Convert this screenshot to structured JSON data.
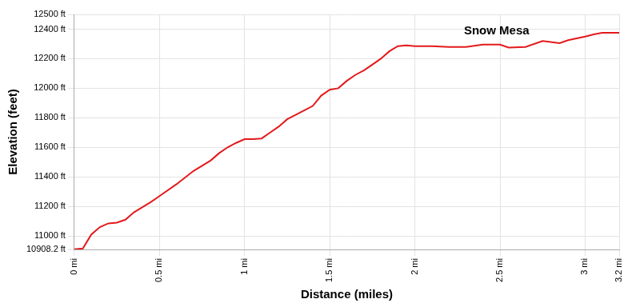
{
  "chart_data": {
    "type": "line",
    "x_label": "Distance (miles)",
    "y_label": "Elevation (feet)",
    "color": "#e31a1c",
    "grid": true,
    "x": [
      0,
      0.05,
      0.1,
      0.15,
      0.2,
      0.25,
      0.3,
      0.35,
      0.4,
      0.45,
      0.5,
      0.6,
      0.7,
      0.8,
      0.85,
      0.9,
      0.95,
      1.0,
      1.05,
      1.1,
      1.15,
      1.2,
      1.25,
      1.3,
      1.35,
      1.4,
      1.45,
      1.5,
      1.55,
      1.6,
      1.65,
      1.7,
      1.75,
      1.8,
      1.85,
      1.9,
      1.95,
      2.0,
      2.1,
      2.2,
      2.3,
      2.4,
      2.5,
      2.55,
      2.65,
      2.75,
      2.85,
      2.9,
      3.0,
      3.05,
      3.1,
      3.2
    ],
    "values": [
      10910,
      10915,
      11010,
      11060,
      11085,
      11090,
      11110,
      11160,
      11195,
      11230,
      11270,
      11350,
      11440,
      11510,
      11560,
      11600,
      11630,
      11655,
      11655,
      11660,
      11700,
      11740,
      11790,
      11820,
      11850,
      11880,
      11950,
      11990,
      12000,
      12050,
      12090,
      12120,
      12160,
      12200,
      12250,
      12285,
      12290,
      12285,
      12285,
      12280,
      12280,
      12295,
      12295,
      12275,
      12280,
      12320,
      12305,
      12325,
      12350,
      12365,
      12375,
      12375
    ],
    "xlim": [
      0,
      3.2
    ],
    "ylim": [
      10908.2,
      12500
    ],
    "xticks": [
      {
        "value": 0,
        "label": "0 mi"
      },
      {
        "value": 0.5,
        "label": "0.5 mi"
      },
      {
        "value": 1,
        "label": "1 mi"
      },
      {
        "value": 1.5,
        "label": "1.5 mi"
      },
      {
        "value": 2,
        "label": "2 mi"
      },
      {
        "value": 2.5,
        "label": "2.5 mi"
      },
      {
        "value": 3,
        "label": "3 mi"
      },
      {
        "value": 3.2,
        "label": "3.2 mi"
      }
    ],
    "yticks": [
      {
        "value": 10908.2,
        "label": "10908.2 ft"
      },
      {
        "value": 11000,
        "label": "11000 ft"
      },
      {
        "value": 11200,
        "label": "11200 ft"
      },
      {
        "value": 11400,
        "label": "11400 ft"
      },
      {
        "value": 11600,
        "label": "11600 ft"
      },
      {
        "value": 11800,
        "label": "11800 ft"
      },
      {
        "value": 12000,
        "label": "12000 ft"
      },
      {
        "value": 12200,
        "label": "12200 ft"
      },
      {
        "value": 12400,
        "label": "12400 ft"
      },
      {
        "value": 12500,
        "label": "12500 ft"
      }
    ],
    "annotations": [
      {
        "text": "Snow Mesa",
        "x": 2.48,
        "y": 12387
      }
    ]
  }
}
